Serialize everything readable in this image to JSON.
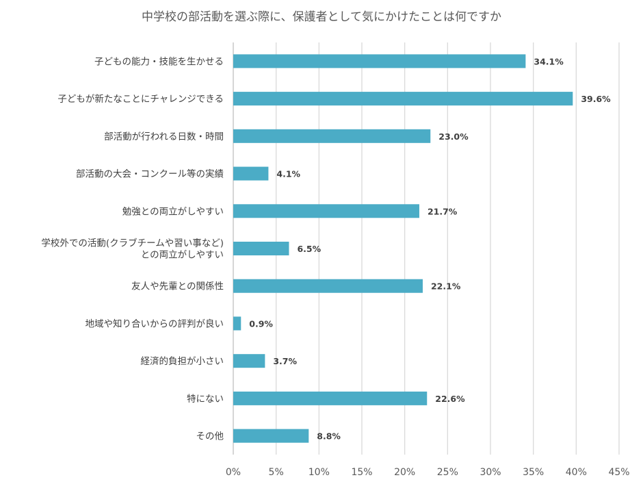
{
  "chart_data": {
    "type": "bar",
    "orientation": "horizontal",
    "title": "中学校の部活動を選ぶ際に、保護者として気にかけたことは何ですか",
    "categories": [
      [
        "子どもの能力・技能を生かせる"
      ],
      [
        "子どもが新たなことにチャレンジできる"
      ],
      [
        "部活動が行われる日数・時間"
      ],
      [
        "部活動の大会・コンクール等の実績"
      ],
      [
        "勉強との両立がしやすい"
      ],
      [
        "学校外での活動(クラブチームや習い事など)",
        "との両立がしやすい"
      ],
      [
        "友人や先輩との関係性"
      ],
      [
        "地域や知り合いからの評判が良い"
      ],
      [
        "経済的負担が小さい"
      ],
      [
        "特にない"
      ],
      [
        "その他"
      ]
    ],
    "values": [
      34.1,
      39.6,
      23.0,
      4.1,
      21.7,
      6.5,
      22.1,
      0.9,
      3.7,
      22.6,
      8.8
    ],
    "value_labels": [
      "34.1%",
      "39.6%",
      "23.0%",
      "4.1%",
      "21.7%",
      "6.5%",
      "22.1%",
      "0.9%",
      "3.7%",
      "22.6%",
      "8.8%"
    ],
    "xlim": [
      0,
      45
    ],
    "xticks": [
      0,
      5,
      10,
      15,
      20,
      25,
      30,
      35,
      40,
      45
    ],
    "xtick_labels": [
      "0%",
      "5%",
      "10%",
      "15%",
      "20%",
      "25%",
      "30%",
      "35%",
      "40%",
      "45%"
    ],
    "grid": "vertical",
    "legend": "none",
    "colors": {
      "bar": "#4bacc6",
      "grid": "#d9d9d9",
      "axis": "#bfbfbf"
    }
  }
}
